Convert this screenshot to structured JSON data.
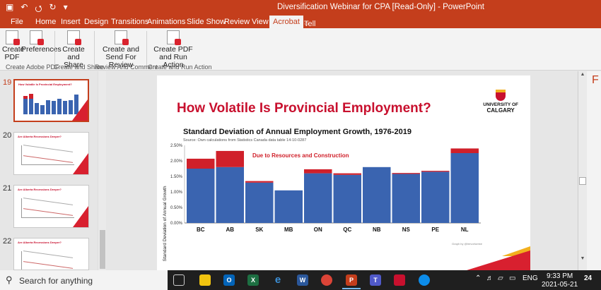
{
  "window": {
    "title": "Diversification Webinar for CPA [Read-Only]  -  PowerPoint",
    "qat": [
      "▣",
      "↶",
      "⭯",
      "↻",
      "▾"
    ]
  },
  "ribbon_tabs": {
    "file": "File",
    "home": "Home",
    "insert": "Insert",
    "design": "Design",
    "transitions": "Transitions",
    "animations": "Animations",
    "slideshow": "Slide Show",
    "review": "Review",
    "view": "View",
    "acrobat": "Acrobat",
    "tellme": "Tell me what you want to do..."
  },
  "ribbon": {
    "create_pdf": "Create PDF",
    "preferences": "Preferences",
    "create_and_share": "Create and Share",
    "create_and_send": "Create and Send For Review",
    "create_pdf_run": "Create PDF and Run Action",
    "group1": "Create Adobe PDF",
    "group2": "Create and Share",
    "group3": "Review And Comment",
    "group4": "Create and Run Action"
  },
  "thumbnails": [
    {
      "number": "19",
      "title": "How Volatile Is Provincial Employment?"
    },
    {
      "number": "20",
      "title": "Are Alberta Recessions Deeper?"
    },
    {
      "number": "21",
      "title": "Are Alberta Recessions Deeper?"
    },
    {
      "number": "22",
      "title": "Are Alberta Recessions Deeper?"
    }
  ],
  "slide": {
    "title": "How Volatile Is Provincial Employment?",
    "logo_line1": "UNIVERSITY OF",
    "logo_line2": "CALGARY"
  },
  "chart_data": {
    "type": "bar",
    "title": "Standard Deviation of Annual Employment Growth, 1976-2019",
    "subtitle": "Source: Own calculations from Statistics Canada data table 14-10-0287",
    "xlabel": "",
    "ylabel": "Standard Deviation of Annual Growth",
    "annotation": "Due to Resources and Construction",
    "credit": "Graph by @trevortombe",
    "categories": [
      "BC",
      "AB",
      "SK",
      "MB",
      "ON",
      "QC",
      "NB",
      "NS",
      "PE",
      "NL"
    ],
    "series": [
      {
        "values": [
          1.75,
          1.8,
          1.3,
          1.05,
          1.6,
          1.55,
          1.8,
          1.58,
          1.65,
          2.25
        ],
        "color": "#3a64b0"
      },
      {
        "values": [
          0.32,
          0.52,
          0.05,
          0.0,
          0.13,
          0.05,
          0.0,
          0.03,
          0.03,
          0.15
        ],
        "color": "#d0202a"
      }
    ],
    "ylim": [
      0,
      2.5
    ],
    "yticks": [
      "0.00%",
      "0.50%",
      "1.00%",
      "1.50%",
      "2.00%",
      "2.50%"
    ],
    "grid": false
  },
  "taskbar": {
    "search_placeholder": "Search for anything",
    "time": "9:33 PM",
    "date": "2021-05-21",
    "lang": "ENG",
    "notif_count": "24"
  },
  "colors": {
    "accent": "#c43e1c",
    "slide_red": "#c8102e"
  }
}
